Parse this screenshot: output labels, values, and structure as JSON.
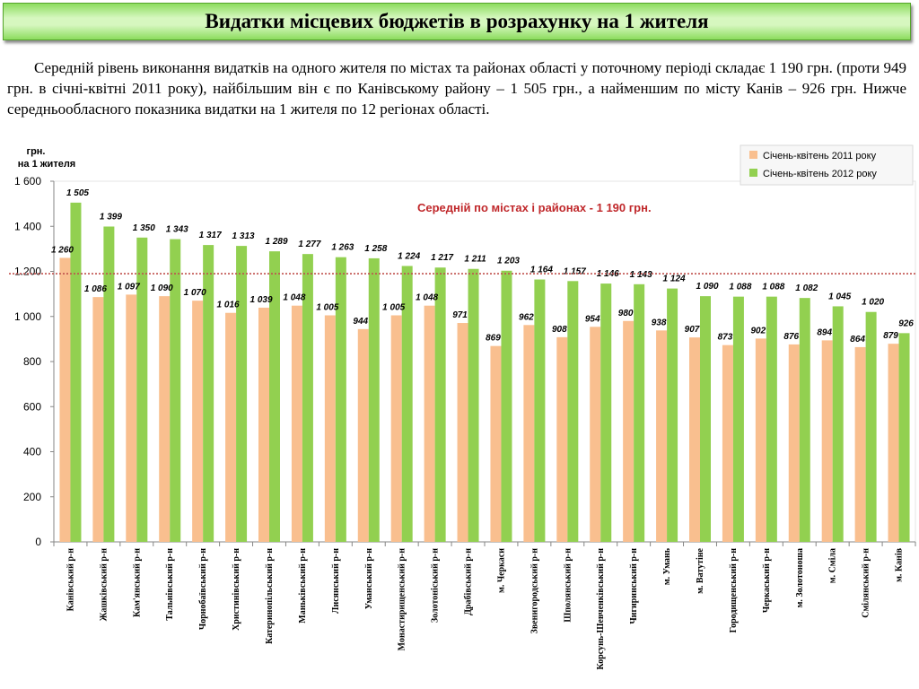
{
  "header": {
    "title": "Видатки місцевих бюджетів в розрахунку на 1  жителя"
  },
  "description": "Середній рівень виконання видатків на одного жителя по містах та районах області у поточному періоді складає 1 190 грн. (проти 949 грн. в січні-квітні 2011 року), найбільшим він є по Канівському району – 1 505 грн., а найменшим по місту Канів – 926 грн. Нижче середньообласного показника видатки на 1 жителя по 12 регіонах області.",
  "chart_data": {
    "type": "bar",
    "ylabel_line1": "грн.",
    "ylabel_line2": "на 1 жителя",
    "ylim": [
      0,
      1600
    ],
    "yticks": [
      0,
      200,
      400,
      600,
      800,
      1000,
      1200,
      1400,
      1600
    ],
    "ytick_labels": [
      "0",
      "200",
      "400",
      "600",
      "800",
      "1 000",
      "1.200",
      "1 400",
      "1 600"
    ],
    "categories": [
      "Канівський р-н",
      "Жашківський р-н",
      "Кам'янський р-н",
      "Тальнівський р-н",
      "Чорнобаївський р-н",
      "Христинівський р-н",
      "Катеринопільський р-н",
      "Маньківський р-н",
      "Лисянський р-н",
      "Уманський р-н",
      "Монастирищенський р-н",
      "Золотоніський р-н",
      "Драбівський р-н",
      "м. Черкаси",
      "Звенигородський р-н",
      "Шполянський р-н",
      "Корсунь-Шевченківський р-н",
      "Чигиринський р-н",
      "м. Умань",
      "м. Ватутіне",
      "Городищенський р-н",
      "Черкаський р-н",
      "м. Золотоноша",
      "м. Сміла",
      "Смілянський р-н",
      "м. Канів"
    ],
    "series": [
      {
        "name": "Січень-квітень 2011 року",
        "color": "#f9bf8f",
        "values": [
          1260,
          1086,
          1097,
          1090,
          1070,
          1016,
          1039,
          1048,
          1005,
          944,
          1005,
          1048,
          971,
          869,
          962,
          908,
          954,
          980,
          938,
          907,
          873,
          902,
          876,
          894,
          864,
          879
        ],
        "labels": [
          "1 260",
          "1 086",
          "1 097",
          "1 090",
          "1 070",
          "1 016",
          "1 039",
          "1 048",
          "1 005",
          "944",
          "1 005",
          "1 048",
          "971",
          "869",
          "962",
          "908",
          "954",
          "980",
          "938",
          "907",
          "873",
          "902",
          "876",
          "894",
          "864",
          "879"
        ]
      },
      {
        "name": "Січень-квітень 2012 року",
        "color": "#92d050",
        "values": [
          1505,
          1399,
          1350,
          1343,
          1317,
          1313,
          1289,
          1277,
          1263,
          1258,
          1224,
          1217,
          1211,
          1203,
          1164,
          1157,
          1146,
          1143,
          1124,
          1090,
          1088,
          1088,
          1082,
          1045,
          1020,
          926
        ],
        "labels": [
          "1 505",
          "1 399",
          "1 350",
          "1 343",
          "1 317",
          "1 313",
          "1 289",
          "1 277",
          "1 263",
          "1 258",
          "1 224",
          "1 217",
          "1 211",
          "1 203",
          "1 164",
          "1 157",
          "1 146",
          "1 143",
          "1 124",
          "1 090",
          "1 088",
          "1 088",
          "1 082",
          "1 045",
          "1 020",
          "926"
        ]
      }
    ],
    "average_line": {
      "value": 1190,
      "label": "Середній по містах і районах  - 1 190 грн.",
      "color": "#c0504d"
    },
    "legend_position": "top-right",
    "grid": false
  }
}
